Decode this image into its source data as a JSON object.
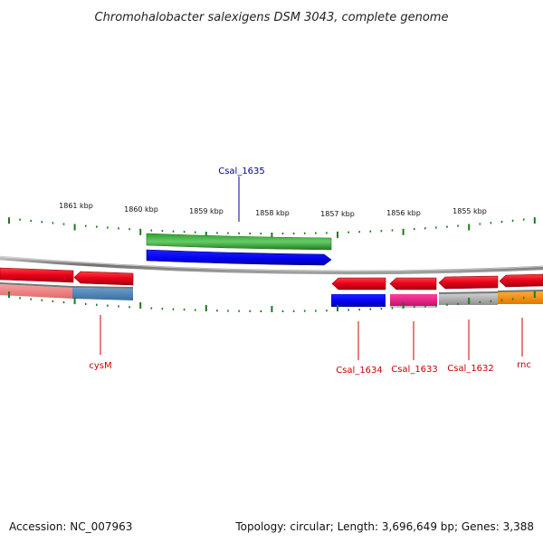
{
  "title": "Chromohalobacter salexigens DSM 3043, complete genome",
  "footer": {
    "accession": "Accession: NC_007963",
    "summary": "Topology: circular; Length: 3,696,649 bp; Genes: 3,388"
  },
  "scale_labels": [
    "1861 kbp",
    "1860 kbp",
    "1859 kbp",
    "1858 kbp",
    "1857 kbp",
    "1856 kbp",
    "1855 kbp"
  ],
  "gene_labels": {
    "csal_1635": "Csal_1635",
    "cysM": "cysM",
    "csal_1634": "Csal_1634",
    "csal_1633": "Csal_1633",
    "csal_1632": "Csal_1632",
    "rnc": "rnc"
  },
  "colors": {
    "forward_cds": "#e8001a",
    "green_feature": "#33aa33",
    "blue_feature": "#0000ee",
    "steelblue_feature": "#4682b4",
    "pink_feature": "#f08080",
    "magenta_feature": "#e81e8c",
    "gray_feature": "#b0b0b0",
    "orange_feature": "#ff8c00",
    "tick": "#1a7a1a",
    "label_blue": "#00008b",
    "label_red": "#cc0000",
    "backbone": "#808080"
  }
}
